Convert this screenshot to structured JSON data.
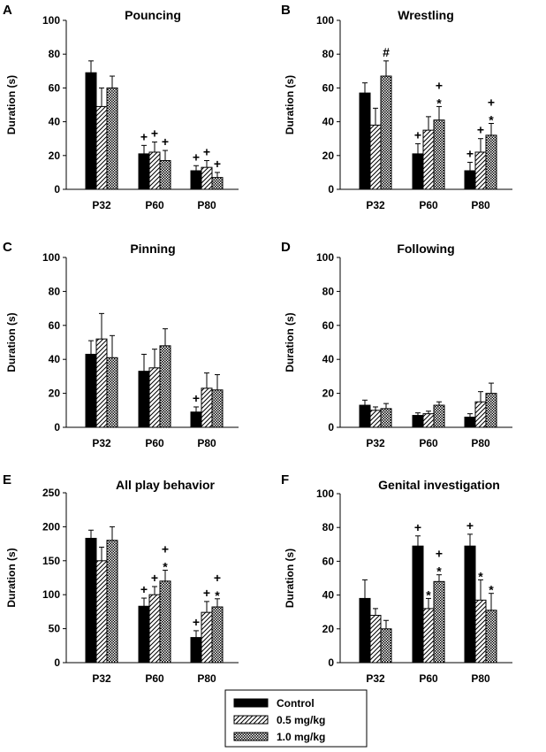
{
  "legend": [
    {
      "label": "Control",
      "pattern": "solid"
    },
    {
      "label": "0.5 mg/kg",
      "pattern": "hatch"
    },
    {
      "label": "1.0 mg/kg",
      "pattern": "checker"
    }
  ],
  "colors": {
    "bar_solid": "#000000",
    "bar_fill": "#ffffff",
    "axis": "#000000"
  },
  "chart_data": [
    {
      "panel": "A",
      "type": "bar",
      "title": "Pouncing",
      "ylabel": "Duration (s)",
      "xlabel": "",
      "ylim": [
        0,
        100
      ],
      "yticks": [
        0,
        20,
        40,
        60,
        80,
        100
      ],
      "categories": [
        "P32",
        "P60",
        "P80"
      ],
      "series": [
        {
          "name": "Control",
          "values": [
            69,
            21,
            11
          ],
          "errors": [
            7,
            5,
            3
          ]
        },
        {
          "name": "0.5 mg/kg",
          "values": [
            49,
            22,
            13
          ],
          "errors": [
            11,
            6,
            4
          ]
        },
        {
          "name": "1.0 mg/kg",
          "values": [
            60,
            17,
            7
          ],
          "errors": [
            7,
            6,
            3
          ]
        }
      ],
      "annotations": [
        {
          "category": 1,
          "series": 0,
          "text": [
            "+"
          ]
        },
        {
          "category": 1,
          "series": 1,
          "text": [
            "+"
          ]
        },
        {
          "category": 1,
          "series": 2,
          "text": [
            "+"
          ]
        },
        {
          "category": 2,
          "series": 0,
          "text": [
            "+"
          ]
        },
        {
          "category": 2,
          "series": 1,
          "text": [
            "+"
          ]
        },
        {
          "category": 2,
          "series": 2,
          "text": [
            "+"
          ]
        }
      ]
    },
    {
      "panel": "B",
      "type": "bar",
      "title": "Wrestling",
      "ylabel": "Duration (s)",
      "xlabel": "",
      "ylim": [
        0,
        100
      ],
      "yticks": [
        0,
        20,
        40,
        60,
        80,
        100
      ],
      "categories": [
        "P32",
        "P60",
        "P80"
      ],
      "series": [
        {
          "name": "Control",
          "values": [
            57,
            21,
            11
          ],
          "errors": [
            6,
            6,
            5
          ]
        },
        {
          "name": "0.5 mg/kg",
          "values": [
            38,
            35,
            22
          ],
          "errors": [
            10,
            8,
            8
          ]
        },
        {
          "name": "1.0 mg/kg",
          "values": [
            67,
            41,
            32
          ],
          "errors": [
            9,
            8,
            7
          ]
        }
      ],
      "annotations": [
        {
          "category": 0,
          "series": 2,
          "text": [
            "#"
          ]
        },
        {
          "category": 1,
          "series": 0,
          "text": [
            "+"
          ]
        },
        {
          "category": 1,
          "series": 2,
          "text": [
            "+",
            "*"
          ]
        },
        {
          "category": 2,
          "series": 0,
          "text": [
            "+"
          ]
        },
        {
          "category": 2,
          "series": 1,
          "text": [
            "+"
          ]
        },
        {
          "category": 2,
          "series": 2,
          "text": [
            "+",
            "*"
          ]
        }
      ]
    },
    {
      "panel": "C",
      "type": "bar",
      "title": "Pinning",
      "ylabel": "Duration (s)",
      "xlabel": "",
      "ylim": [
        0,
        100
      ],
      "yticks": [
        0,
        20,
        40,
        60,
        80,
        100
      ],
      "categories": [
        "P32",
        "P60",
        "P80"
      ],
      "series": [
        {
          "name": "Control",
          "values": [
            43,
            33,
            9
          ],
          "errors": [
            8,
            10,
            3
          ]
        },
        {
          "name": "0.5 mg/kg",
          "values": [
            52,
            35,
            23
          ],
          "errors": [
            15,
            11,
            9
          ]
        },
        {
          "name": "1.0 mg/kg",
          "values": [
            41,
            48,
            22
          ],
          "errors": [
            13,
            10,
            9
          ]
        }
      ],
      "annotations": [
        {
          "category": 2,
          "series": 0,
          "text": [
            "+"
          ]
        }
      ]
    },
    {
      "panel": "D",
      "type": "bar",
      "title": "Following",
      "ylabel": "Duration (s)",
      "xlabel": "",
      "ylim": [
        0,
        100
      ],
      "yticks": [
        0,
        20,
        40,
        60,
        80,
        100
      ],
      "categories": [
        "P32",
        "P60",
        "P80"
      ],
      "series": [
        {
          "name": "Control",
          "values": [
            13,
            7,
            6
          ],
          "errors": [
            3,
            1.5,
            2
          ]
        },
        {
          "name": "0.5 mg/kg",
          "values": [
            10,
            8,
            15
          ],
          "errors": [
            2,
            1.5,
            6
          ]
        },
        {
          "name": "1.0 mg/kg",
          "values": [
            11,
            13,
            20
          ],
          "errors": [
            3,
            2,
            6
          ]
        }
      ],
      "annotations": []
    },
    {
      "panel": "E",
      "type": "bar",
      "title": "All play behavior",
      "ylabel": "Duration (s)",
      "xlabel": "",
      "ylim": [
        0,
        250
      ],
      "yticks": [
        0,
        50,
        100,
        150,
        200,
        250
      ],
      "categories": [
        "P32",
        "P60",
        "P80"
      ],
      "series": [
        {
          "name": "Control",
          "values": [
            183,
            83,
            37
          ],
          "errors": [
            12,
            12,
            10
          ]
        },
        {
          "name": "0.5 mg/kg",
          "values": [
            150,
            100,
            74
          ],
          "errors": [
            20,
            12,
            16
          ]
        },
        {
          "name": "1.0 mg/kg",
          "values": [
            180,
            120,
            82
          ],
          "errors": [
            20,
            16,
            12
          ]
        }
      ],
      "annotations": [
        {
          "category": 1,
          "series": 0,
          "text": [
            "+"
          ]
        },
        {
          "category": 1,
          "series": 1,
          "text": [
            "+"
          ]
        },
        {
          "category": 1,
          "series": 2,
          "text": [
            "+",
            "*"
          ]
        },
        {
          "category": 2,
          "series": 0,
          "text": [
            "+"
          ]
        },
        {
          "category": 2,
          "series": 1,
          "text": [
            "+"
          ]
        },
        {
          "category": 2,
          "series": 2,
          "text": [
            "+",
            "*"
          ]
        }
      ]
    },
    {
      "panel": "F",
      "type": "bar",
      "title": "Genital investigation",
      "ylabel": "Duration (s)",
      "xlabel": "",
      "ylim": [
        0,
        100
      ],
      "yticks": [
        0,
        20,
        40,
        60,
        80,
        100
      ],
      "categories": [
        "P32",
        "P60",
        "P80"
      ],
      "series": [
        {
          "name": "Control",
          "values": [
            38,
            69,
            69
          ],
          "errors": [
            11,
            6,
            7
          ]
        },
        {
          "name": "0.5 mg/kg",
          "values": [
            28,
            32,
            37
          ],
          "errors": [
            4,
            6,
            12
          ]
        },
        {
          "name": "1.0 mg/kg",
          "values": [
            20,
            48,
            31
          ],
          "errors": [
            5,
            4,
            10
          ]
        }
      ],
      "annotations": [
        {
          "category": 1,
          "series": 0,
          "text": [
            "+"
          ]
        },
        {
          "category": 1,
          "series": 1,
          "text": [
            "*"
          ]
        },
        {
          "category": 1,
          "series": 2,
          "text": [
            "+",
            "*"
          ]
        },
        {
          "category": 2,
          "series": 0,
          "text": [
            "+"
          ]
        },
        {
          "category": 2,
          "series": 1,
          "text": [
            "*"
          ]
        },
        {
          "category": 2,
          "series": 2,
          "text": [
            "*"
          ]
        }
      ]
    }
  ]
}
